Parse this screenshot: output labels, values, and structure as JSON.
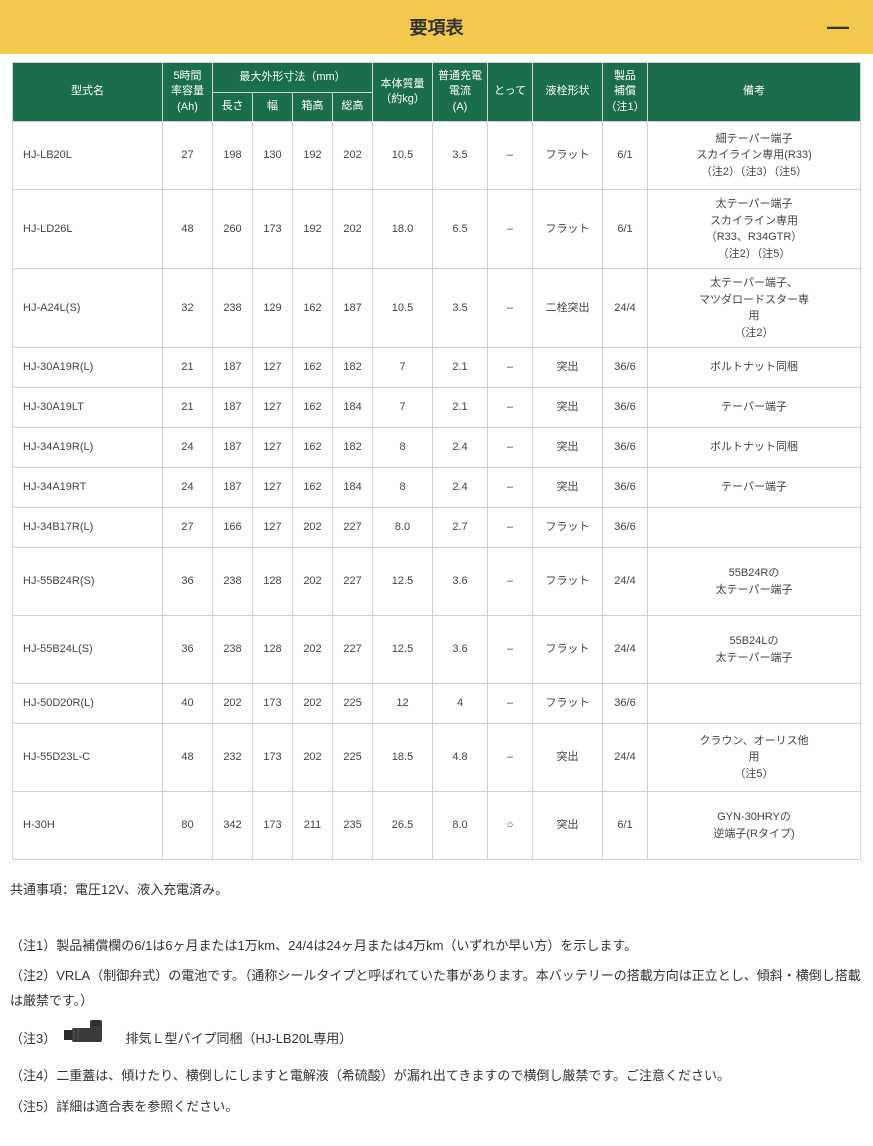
{
  "title": "要項表",
  "colors": {
    "titleBg": "#f2c94c",
    "headerBg": "#1a6e4c",
    "headerFg": "#ffffff",
    "border": "#cfd3d6",
    "bodyFg": "#444444"
  },
  "header": {
    "model": "型式名",
    "capacity": "5時間\n率容量\n(Ah)",
    "dimGroup": "最大外形寸法（mm）",
    "len": "長さ",
    "wid": "幅",
    "boxH": "箱高",
    "totH": "総高",
    "weight": "本体質量\n（約kg）",
    "charge": "普通充電\n電流\n(A)",
    "handle": "とって",
    "plug": "液栓形状",
    "warranty": "製品\n補償\n（注1）",
    "remarks": "備考"
  },
  "rows": [
    {
      "model": "HJ-LB20L",
      "cap": "27",
      "len": "198",
      "wid": "130",
      "boxh": "192",
      "toth": "202",
      "wt": "10.5",
      "cur": "3.5",
      "hdl": "–",
      "plug": "フラット",
      "war": "6/1",
      "rem": "細テーパー端子\nスカイライン専用(R33)\n（注2）（注3）（注5）",
      "tall": true
    },
    {
      "model": "HJ-LD26L",
      "cap": "48",
      "len": "260",
      "wid": "173",
      "boxh": "192",
      "toth": "202",
      "wt": "18.0",
      "cur": "6.5",
      "hdl": "–",
      "plug": "フラット",
      "war": "6/1",
      "rem": "太テーパー端子\nスカイライン専用\n（R33、R34GTR）\n（注2）（注5）",
      "tall": true
    },
    {
      "model": "HJ-A24L(S)",
      "cap": "32",
      "len": "238",
      "wid": "129",
      "boxh": "162",
      "toth": "187",
      "wt": "10.5",
      "cur": "3.5",
      "hdl": "–",
      "plug": "二栓突出",
      "war": "24/4",
      "rem": "太テーパー端子、\nマツダロードスター専\n用\n（注2）",
      "tall": true
    },
    {
      "model": "HJ-30A19R(L)",
      "cap": "21",
      "len": "187",
      "wid": "127",
      "boxh": "162",
      "toth": "182",
      "wt": "7",
      "cur": "2.1",
      "hdl": "–",
      "plug": "突出",
      "war": "36/6",
      "rem": "ボルトナット同梱"
    },
    {
      "model": "HJ-30A19LT",
      "cap": "21",
      "len": "187",
      "wid": "127",
      "boxh": "162",
      "toth": "184",
      "wt": "7",
      "cur": "2.1",
      "hdl": "–",
      "plug": "突出",
      "war": "36/6",
      "rem": "テーパー端子"
    },
    {
      "model": "HJ-34A19R(L)",
      "cap": "24",
      "len": "187",
      "wid": "127",
      "boxh": "162",
      "toth": "182",
      "wt": "8",
      "cur": "2.4",
      "hdl": "–",
      "plug": "突出",
      "war": "36/6",
      "rem": "ボルトナット同梱"
    },
    {
      "model": "HJ-34A19RT",
      "cap": "24",
      "len": "187",
      "wid": "127",
      "boxh": "162",
      "toth": "184",
      "wt": "8",
      "cur": "2.4",
      "hdl": "–",
      "plug": "突出",
      "war": "36/6",
      "rem": "テーパー端子"
    },
    {
      "model": "HJ-34B17R(L)",
      "cap": "27",
      "len": "166",
      "wid": "127",
      "boxh": "202",
      "toth": "227",
      "wt": "8.0",
      "cur": "2.7",
      "hdl": "–",
      "plug": "フラット",
      "war": "36/6",
      "rem": ""
    },
    {
      "model": "HJ-55B24R(S)",
      "cap": "36",
      "len": "238",
      "wid": "128",
      "boxh": "202",
      "toth": "227",
      "wt": "12.5",
      "cur": "3.6",
      "hdl": "–",
      "plug": "フラット",
      "war": "24/4",
      "rem": "55B24Rの\n太テーパー端子",
      "tall": true
    },
    {
      "model": "HJ-55B24L(S)",
      "cap": "36",
      "len": "238",
      "wid": "128",
      "boxh": "202",
      "toth": "227",
      "wt": "12.5",
      "cur": "3.6",
      "hdl": "–",
      "plug": "フラット",
      "war": "24/4",
      "rem": "55B24Lの\n太テーパー端子",
      "tall": true
    },
    {
      "model": "HJ-50D20R(L)",
      "cap": "40",
      "len": "202",
      "wid": "173",
      "boxh": "202",
      "toth": "225",
      "wt": "12",
      "cur": "4",
      "hdl": "–",
      "plug": "フラット",
      "war": "36/6",
      "rem": ""
    },
    {
      "model": "HJ-55D23L-C",
      "cap": "48",
      "len": "232",
      "wid": "173",
      "boxh": "202",
      "toth": "225",
      "wt": "18.5",
      "cur": "4.8",
      "hdl": "–",
      "plug": "突出",
      "war": "24/4",
      "rem": "クラウン、オーリス他\n用\n（注5）",
      "tall": true
    },
    {
      "model": "H-30H",
      "cap": "80",
      "len": "342",
      "wid": "173",
      "boxh": "211",
      "toth": "235",
      "wt": "26.5",
      "cur": "8.0",
      "hdl": "○",
      "plug": "突出",
      "war": "6/1",
      "rem": "GYN-30HRYの\n逆端子(Rタイプ)",
      "tall": true
    }
  ],
  "notes": {
    "common": "共通事項：電圧12V、液入充電済み。",
    "n1": "（注1）製品補償欄の6/1は6ヶ月または1万km、24/4は24ヶ月または4万km（いずれか早い方）を示します。",
    "n2": "（注2）VRLA（制御弁式）の電池です。（通称シールタイプと呼ばれていた事があります。本バッテリーの搭載方向は正立とし、傾斜・横倒し搭載は厳禁です。）",
    "n3a": "（注3）",
    "n3b": "排気Ｌ型パイプ同梱（HJ-LB20L専用）",
    "n4": "（注4）二重蓋は、傾けたり、横倒しにしますと電解液（希硫酸）が漏れ出てきますので横倒し厳禁です。ご注意ください。",
    "n5": "（注5）詳細は適合表を参照ください。"
  },
  "colWidths": {
    "model": 150,
    "cap": 50,
    "len": 40,
    "wid": 40,
    "boxh": 40,
    "toth": 40,
    "wt": 60,
    "cur": 55,
    "hdl": 45,
    "plug": 70,
    "war": 45,
    "rem": 140
  }
}
